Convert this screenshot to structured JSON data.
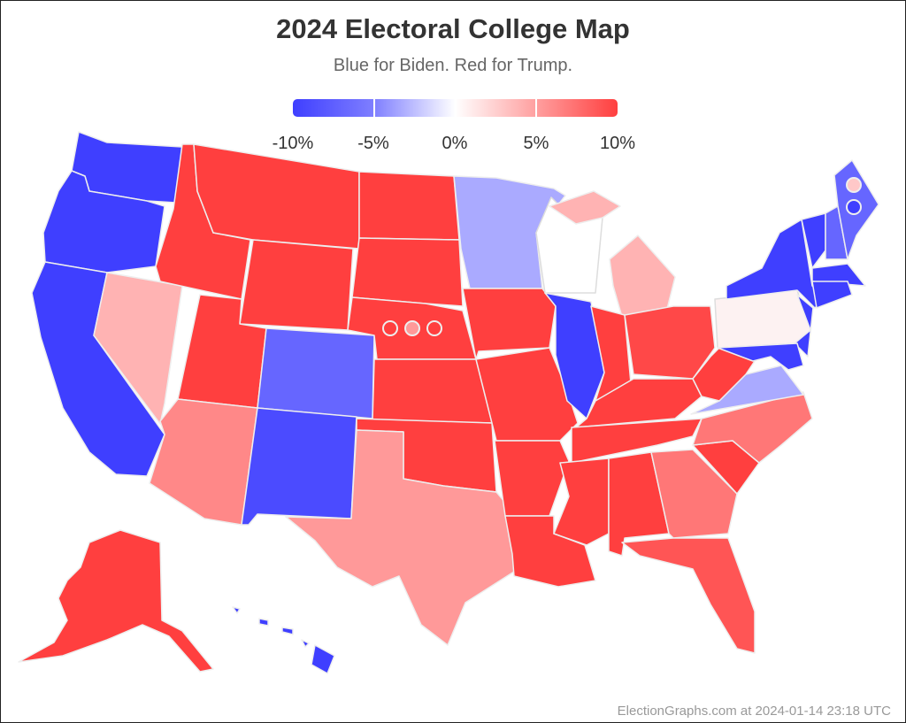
{
  "title": "2024 Electoral College Map",
  "subtitle": "Blue for Biden. Red for Trump.",
  "legend": {
    "ticks": [
      "-10%",
      "-5%",
      "0%",
      "5%",
      "10%"
    ],
    "range_percent": [
      -10,
      10
    ]
  },
  "palette": {
    "strong_blue": "#3f3fff",
    "medium_blue": "#6666ff",
    "lean_blue": "#aaaaff",
    "tossup_white": "#ffffff",
    "tossup_pink": "#fdf2f2",
    "lean_red": "#ffb3b3",
    "medium_red": "#ff9999",
    "moderate_red": "#ff7777",
    "strong_red": "#ff3f3f"
  },
  "footer": "ElectionGraphs.com at 2024-01-14 23:18 UTC"
}
